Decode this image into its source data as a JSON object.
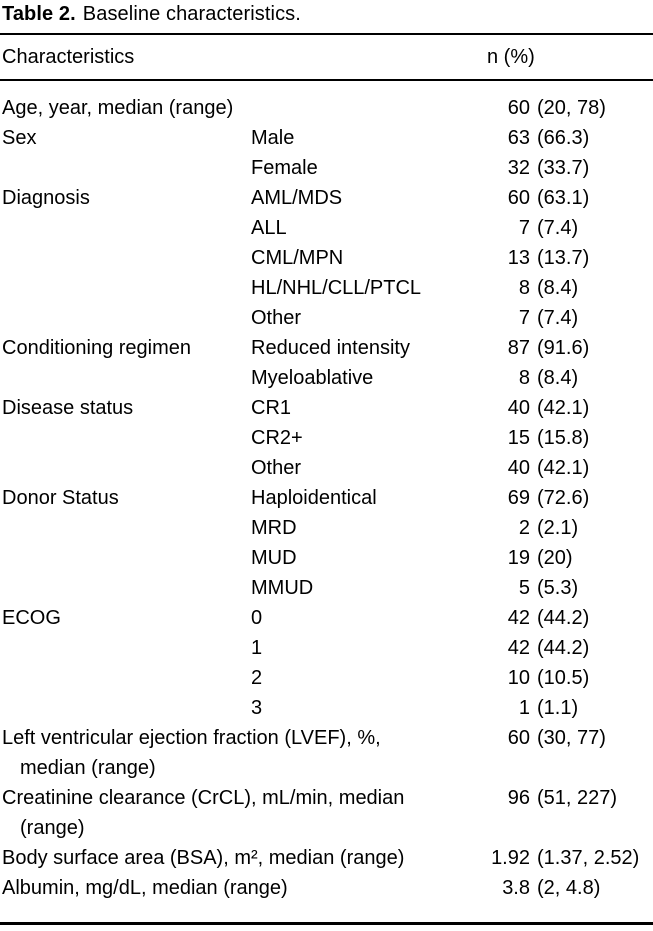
{
  "page": {
    "background_color": "#ffffff",
    "text_color": "#000000",
    "rule_color": "#000000"
  },
  "title": {
    "label": "Table 2.",
    "caption": "Baseline characteristics."
  },
  "header": {
    "characteristics": "Characteristics",
    "n_pct": "n (%)"
  },
  "table": {
    "rows": [
      {
        "label": "Age, year, median (range)",
        "sub": "",
        "value": "60 (20, 78)"
      },
      {
        "label": "Sex",
        "sub": "Male",
        "value": "63 (66.3)"
      },
      {
        "label": "",
        "sub": "Female",
        "value": "32 (33.7)"
      },
      {
        "label": "Diagnosis",
        "sub": "AML/MDS",
        "value": "60 (63.1)"
      },
      {
        "label": "",
        "sub": "ALL",
        "value": "7 (7.4)"
      },
      {
        "label": "",
        "sub": "CML/MPN",
        "value": "13 (13.7)"
      },
      {
        "label": "",
        "sub": "HL/NHL/CLL/PTCL",
        "value": "8 (8.4)"
      },
      {
        "label": "",
        "sub": "Other",
        "value": "7 (7.4)"
      },
      {
        "label": "Conditioning regimen",
        "sub": "Reduced intensity",
        "value": "87 (91.6)"
      },
      {
        "label": "",
        "sub": "Myeloablative",
        "value": "8 (8.4)"
      },
      {
        "label": "Disease status",
        "sub": "CR1",
        "value": "40 (42.1)"
      },
      {
        "label": "",
        "sub": "CR2+",
        "value": "15 (15.8)"
      },
      {
        "label": "",
        "sub": "Other",
        "value": "40 (42.1)"
      },
      {
        "label": "Donor Status",
        "sub": "Haploidentical",
        "value": "69 (72.6)"
      },
      {
        "label": "",
        "sub": "MRD",
        "value": "2 (2.1)"
      },
      {
        "label": "",
        "sub": "MUD",
        "value": "19 (20)"
      },
      {
        "label": "",
        "sub": "MMUD",
        "value": "5 (5.3)"
      },
      {
        "label": "ECOG",
        "sub": "0",
        "value": "42 (44.2)"
      },
      {
        "label": "",
        "sub": "1",
        "value": "42 (44.2)"
      },
      {
        "label": "",
        "sub": "2",
        "value": "10 (10.5)"
      },
      {
        "label": "",
        "sub": "3",
        "value": "1 (1.1)"
      },
      {
        "label": "Left ventricular ejection fraction (LVEF), %, median (range)",
        "sub": "",
        "value": "60 (30, 77)"
      },
      {
        "label": "Creatinine clearance (CrCL), mL/min, median (range)",
        "sub": "",
        "value": "96 (51, 227)"
      },
      {
        "label": "Body surface area (BSA), m², median (range)",
        "sub": "",
        "value": "1.92 (1.37, 2.52)"
      },
      {
        "label": "Albumin, mg/dL, median (range)",
        "sub": "",
        "value": "3.8 (2, 4.8)"
      }
    ]
  }
}
